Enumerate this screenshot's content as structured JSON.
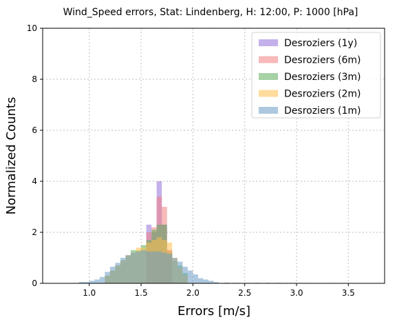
{
  "chart_data": {
    "type": "bar",
    "title": "Wind_Speed errors, Stat: Lindenberg, H: 12:00, P: 1000 [hPa]",
    "xlabel": "Errors [m/s]",
    "ylabel": "Normalized Counts",
    "xlim": [
      0.55,
      3.85
    ],
    "ylim": [
      0,
      10
    ],
    "xticks": [
      "1.0",
      "1.5",
      "2.0",
      "2.5",
      "3.0",
      "3.5"
    ],
    "yticks": [
      "0",
      "2",
      "4",
      "6",
      "8",
      "10"
    ],
    "grid": true,
    "legend_position": "top-right",
    "bin_width": 0.05,
    "series": [
      {
        "name": "Desroziers (1y)",
        "color": "#9370db",
        "bins": [
          [
            1.55,
            2.3
          ],
          [
            1.6,
            2.0
          ],
          [
            1.65,
            4.0
          ],
          [
            1.7,
            2.3
          ],
          [
            1.75,
            1.3
          ]
        ]
      },
      {
        "name": "Desroziers (6m)",
        "color": "#f08080",
        "bins": [
          [
            1.55,
            2.0
          ],
          [
            1.6,
            2.2
          ],
          [
            1.65,
            3.4
          ],
          [
            1.7,
            3.0
          ],
          [
            1.75,
            1.3
          ]
        ]
      },
      {
        "name": "Desroziers (3m)",
        "color": "#5cad5c",
        "bins": [
          [
            1.15,
            0.3
          ],
          [
            1.2,
            0.5
          ],
          [
            1.25,
            0.7
          ],
          [
            1.3,
            0.9
          ],
          [
            1.35,
            1.1
          ],
          [
            1.4,
            1.3
          ],
          [
            1.45,
            1.3
          ],
          [
            1.5,
            1.5
          ],
          [
            1.55,
            1.7
          ],
          [
            1.6,
            2.1
          ],
          [
            1.65,
            2.3
          ],
          [
            1.7,
            2.3
          ],
          [
            1.75,
            1.2
          ],
          [
            1.8,
            0.9
          ],
          [
            1.85,
            0.7
          ],
          [
            1.9,
            0.4
          ]
        ]
      },
      {
        "name": "Desroziers (2m)",
        "color": "#ffc04c",
        "bins": [
          [
            1.15,
            0.3
          ],
          [
            1.2,
            0.5
          ],
          [
            1.25,
            0.7
          ],
          [
            1.3,
            0.9
          ],
          [
            1.35,
            1.1
          ],
          [
            1.4,
            1.2
          ],
          [
            1.45,
            1.4
          ],
          [
            1.5,
            1.4
          ],
          [
            1.55,
            1.6
          ],
          [
            1.6,
            1.7
          ],
          [
            1.65,
            1.8
          ],
          [
            1.7,
            1.7
          ],
          [
            1.75,
            1.6
          ],
          [
            1.8,
            1.0
          ],
          [
            1.85,
            0.6
          ],
          [
            1.9,
            0.3
          ]
        ]
      },
      {
        "name": "Desroziers (1m)",
        "color": "#6b9dc4",
        "bins": [
          [
            0.9,
            0.05
          ],
          [
            0.95,
            0.05
          ],
          [
            1.0,
            0.1
          ],
          [
            1.05,
            0.15
          ],
          [
            1.1,
            0.25
          ],
          [
            1.15,
            0.45
          ],
          [
            1.2,
            0.65
          ],
          [
            1.25,
            0.8
          ],
          [
            1.3,
            1.0
          ],
          [
            1.35,
            1.1
          ],
          [
            1.4,
            1.2
          ],
          [
            1.45,
            1.25
          ],
          [
            1.5,
            1.3
          ],
          [
            1.55,
            1.25
          ],
          [
            1.6,
            1.25
          ],
          [
            1.65,
            1.25
          ],
          [
            1.7,
            1.2
          ],
          [
            1.75,
            1.15
          ],
          [
            1.8,
            1.0
          ],
          [
            1.85,
            0.85
          ],
          [
            1.9,
            0.65
          ],
          [
            1.95,
            0.5
          ],
          [
            2.0,
            0.35
          ],
          [
            2.05,
            0.2
          ],
          [
            2.1,
            0.15
          ],
          [
            2.15,
            0.1
          ],
          [
            2.2,
            0.05
          ],
          [
            2.3,
            0.03
          ],
          [
            2.4,
            0.02
          ],
          [
            2.5,
            0.02
          ],
          [
            2.6,
            0.02
          ],
          [
            2.7,
            0.02
          ],
          [
            2.8,
            0.02
          ]
        ]
      }
    ]
  }
}
